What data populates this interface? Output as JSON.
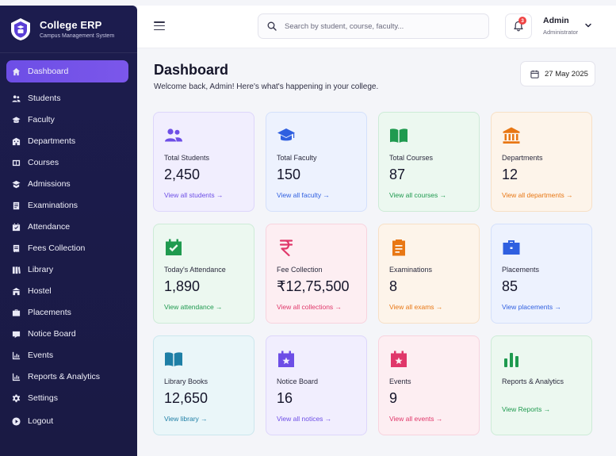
{
  "brand": {
    "title": "College ERP",
    "subtitle": "Campus Management System"
  },
  "sidebar": {
    "items": [
      {
        "label": "Dashboard",
        "icon": "home-icon",
        "active": true
      },
      {
        "label": "Students",
        "icon": "users-icon"
      },
      {
        "label": "Faculty",
        "icon": "graduation-cap-icon"
      },
      {
        "label": "Departments",
        "icon": "building-icon"
      },
      {
        "label": "Courses",
        "icon": "book-icon"
      },
      {
        "label": "Admissions",
        "icon": "user-plus-icon"
      },
      {
        "label": "Examinations",
        "icon": "clipboard-icon"
      },
      {
        "label": "Attendance",
        "icon": "calendar-check-icon"
      },
      {
        "label": "Fees Collection",
        "icon": "receipt-icon"
      },
      {
        "label": "Library",
        "icon": "library-icon"
      },
      {
        "label": "Hostel",
        "icon": "hostel-icon"
      },
      {
        "label": "Placements",
        "icon": "briefcase-icon"
      },
      {
        "label": "Notice Board",
        "icon": "notice-icon"
      },
      {
        "label": "Events",
        "icon": "events-icon"
      },
      {
        "label": "Reports & Analytics",
        "icon": "chart-icon"
      },
      {
        "label": "Settings",
        "icon": "gear-icon"
      },
      {
        "label": "Logout",
        "icon": "logout-icon"
      }
    ]
  },
  "header": {
    "search_placeholder": "Search by student, course, faculty...",
    "notification_count": "3",
    "user_name": "Admin",
    "user_role": "Administrator"
  },
  "main": {
    "title": "Dashboard",
    "welcome": "Welcome back, Admin! Here's what's happening in your college.",
    "date": "27 May 2025"
  },
  "cards": [
    {
      "label": "Total Students",
      "value": "2,450",
      "link": "View all students →",
      "icon": "users-icon",
      "accent": "#6d4ee6",
      "bg": "#f1eefe",
      "border": "#ddd6fb"
    },
    {
      "label": "Total Faculty",
      "value": "150",
      "link": "View all faculty →",
      "icon": "graduation-cap-icon",
      "accent": "#2f5fe0",
      "bg": "#edf2fe",
      "border": "#d4e0fb"
    },
    {
      "label": "Total Courses",
      "value": "87",
      "link": "View all courses →",
      "icon": "book-open-icon",
      "accent": "#1f9a4f",
      "bg": "#ecf8f0",
      "border": "#cdebd7"
    },
    {
      "label": "Departments",
      "value": "12",
      "link": "View all departments →",
      "icon": "building-icon",
      "accent": "#e87714",
      "bg": "#fdf4ea",
      "border": "#f7e0c6"
    },
    {
      "label": "Today's Attendance",
      "value": "1,890",
      "link": "View attendance →",
      "icon": "calendar-check-icon",
      "accent": "#1f9a4f",
      "bg": "#ecf8f0",
      "border": "#cdebd7"
    },
    {
      "label": "Fee Collection",
      "value": "₹12,75,500",
      "link": "View all collections →",
      "icon": "rupee-icon",
      "accent": "#e0376a",
      "bg": "#fdeef2",
      "border": "#f8d3de"
    },
    {
      "label": "Examinations",
      "value": "8",
      "link": "View all exams →",
      "icon": "clipboard-icon",
      "accent": "#e87714",
      "bg": "#fdf4ea",
      "border": "#f7e0c6"
    },
    {
      "label": "Placements",
      "value": "85",
      "link": "View placements →",
      "icon": "briefcase-icon",
      "accent": "#2f5fe0",
      "bg": "#edf2fe",
      "border": "#d4e0fb"
    },
    {
      "label": "Library Books",
      "value": "12,650",
      "link": "View library →",
      "icon": "book-open-icon",
      "accent": "#1e7fa6",
      "bg": "#eaf6f9",
      "border": "#cbe7ee"
    },
    {
      "label": "Notice Board",
      "value": "16",
      "link": "View all notices →",
      "icon": "calendar-star-icon",
      "accent": "#6d4ee6",
      "bg": "#f1eefe",
      "border": "#ddd6fb"
    },
    {
      "label": "Events",
      "value": "9",
      "link": "View all events →",
      "icon": "calendar-star-icon",
      "accent": "#e0376a",
      "bg": "#fdeef2",
      "border": "#f8d3de"
    },
    {
      "label": "Reports & Analytics",
      "value": "",
      "link": "View Reports →",
      "icon": "bar-chart-icon",
      "accent": "#1f9a4f",
      "bg": "#ecf8f0",
      "border": "#cdebd7"
    }
  ]
}
